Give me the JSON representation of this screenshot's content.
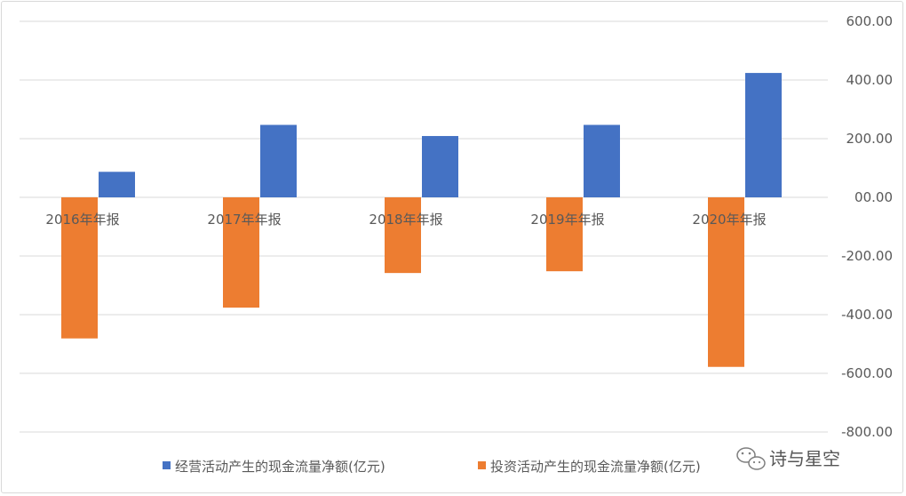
{
  "chart_data": {
    "type": "bar",
    "categories": [
      "2016年年报",
      "2017年年报",
      "2018年年报",
      "2019年年报",
      "2020年年报"
    ],
    "series": [
      {
        "name": "经营活动产生的现金流量净额(亿元)",
        "color": "#4472C4",
        "values": [
          87,
          247,
          209,
          247,
          424
        ]
      },
      {
        "name": "投资活动产生的现金流量净额(亿元)",
        "color": "#ED7D31",
        "values": [
          -481,
          -376,
          -258,
          -252,
          -578
        ]
      }
    ],
    "ylim": [
      -800,
      600
    ],
    "yticks": [
      "600.00",
      "400.00",
      "200.00",
      "00.00",
      "-200.00",
      "-400.00",
      "-600.00",
      "-800.00"
    ],
    "ytick_values": [
      600,
      400,
      200,
      0,
      -200,
      -400,
      -600,
      -800
    ],
    "y_axis_side": "right",
    "grid": true,
    "legend": "bottom"
  },
  "watermark": {
    "text": "诗与星空",
    "icon": "wechat-icon"
  }
}
